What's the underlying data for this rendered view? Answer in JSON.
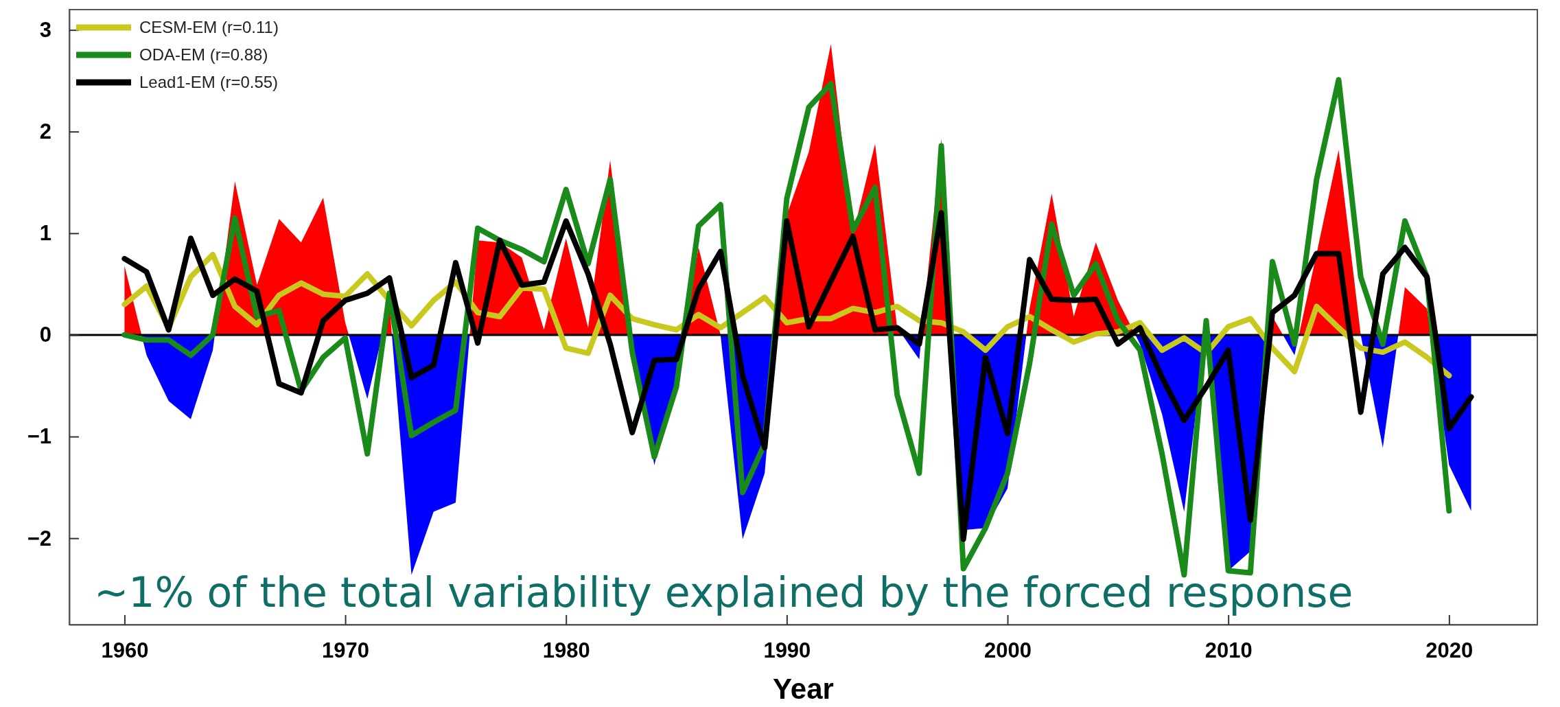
{
  "chart_data": {
    "type": "line",
    "xlabel": "Year",
    "x": [
      1960,
      1961,
      1962,
      1963,
      1964,
      1965,
      1966,
      1967,
      1968,
      1969,
      1970,
      1971,
      1972,
      1973,
      1974,
      1975,
      1976,
      1977,
      1978,
      1979,
      1980,
      1981,
      1982,
      1983,
      1984,
      1985,
      1986,
      1987,
      1988,
      1989,
      1990,
      1991,
      1992,
      1993,
      1994,
      1995,
      1996,
      1997,
      1998,
      1999,
      2000,
      2001,
      2002,
      2003,
      2004,
      2005,
      2006,
      2007,
      2008,
      2009,
      2010,
      2011,
      2012,
      2013,
      2014,
      2015,
      2016,
      2017,
      2018,
      2019,
      2020,
      2021
    ],
    "series": [
      {
        "type": "area",
        "colors": [
          "#ff0000",
          "#0000ff",
          "#0000ff",
          "#0000ff",
          "#0000ff",
          "#ff0000",
          "#ff0000",
          "#ff0000",
          "#ff0000",
          "#ff0000",
          "#ff0000",
          "#0000ff",
          "#ff0000",
          "#0000ff",
          "#0000ff",
          "#0000ff",
          "#ff0000",
          "#ff0000",
          "#ff0000",
          "#ff0000",
          "#ff0000",
          "#ff0000",
          "#ff0000",
          "#0000ff",
          "#0000ff",
          "#0000ff",
          "#ff0000",
          "#ff0000",
          "#0000ff",
          "#0000ff",
          "#ff0000",
          "#ff0000",
          "#ff0000",
          "#ff0000",
          "#ff0000",
          "#ff0000",
          "#0000ff",
          "#ff0000",
          "#0000ff",
          "#0000ff",
          "#0000ff",
          "#ff0000",
          "#ff0000",
          "#ff0000",
          "#ff0000",
          "#ff0000",
          "#0000ff",
          "#0000ff",
          "#0000ff",
          "#ff0000",
          "#0000ff",
          "#0000ff",
          "#ff0000",
          "#0000ff",
          "#ff0000",
          "#ff0000",
          "#ff0000",
          "#0000ff",
          "#ff0000",
          "#ff0000",
          "#0000ff",
          "#0000ff"
        ],
        "values": [
          0.68,
          -0.2,
          -0.65,
          -0.83,
          -0.15,
          1.51,
          0.49,
          1.14,
          0.91,
          1.35,
          0.12,
          -0.63,
          0.3,
          -2.36,
          -1.74,
          -1.65,
          0.93,
          0.91,
          0.76,
          0.05,
          0.95,
          0.07,
          1.72,
          -0.05,
          -1.28,
          -0.43,
          0.86,
          0.0,
          -2.01,
          -1.36,
          1.18,
          1.8,
          2.86,
          0.99,
          1.88,
          0.07,
          -0.24,
          1.93,
          -1.92,
          -1.9,
          -1.51,
          0.26,
          1.39,
          0.18,
          0.91,
          0.34,
          -0.09,
          -0.78,
          -1.74,
          0.1,
          -2.32,
          -2.13,
          0.18,
          -0.2,
          0.8,
          1.82,
          0.0,
          -1.11,
          0.47,
          0.26,
          -1.28,
          -1.73
        ]
      },
      {
        "name": "CESM-EM (r=0.11)",
        "color": "#c8c81e",
        "values": [
          0.3,
          0.48,
          0.07,
          0.57,
          0.79,
          0.28,
          0.1,
          0.39,
          0.51,
          0.4,
          0.38,
          0.6,
          0.34,
          0.09,
          0.34,
          0.52,
          0.22,
          0.18,
          0.46,
          0.45,
          -0.13,
          -0.18,
          0.39,
          0.16,
          0.1,
          0.05,
          0.2,
          0.07,
          0.22,
          0.37,
          0.12,
          0.16,
          0.16,
          0.26,
          0.22,
          0.28,
          0.14,
          0.12,
          0.03,
          -0.15,
          0.08,
          0.18,
          0.05,
          -0.07,
          0.01,
          0.03,
          0.12,
          -0.15,
          -0.03,
          -0.18,
          0.08,
          0.16,
          -0.13,
          -0.36,
          0.28,
          0.07,
          -0.13,
          -0.17,
          -0.07,
          -0.22,
          -0.4,
          null
        ]
      },
      {
        "name": "ODA-EM (r=0.88)",
        "color": "#1a8a1a",
        "values": [
          0.0,
          -0.05,
          -0.05,
          -0.2,
          0.0,
          1.15,
          0.18,
          0.24,
          -0.55,
          -0.22,
          -0.03,
          -1.17,
          0.41,
          -0.99,
          -0.86,
          -0.74,
          1.05,
          0.93,
          0.84,
          0.72,
          1.43,
          0.7,
          1.53,
          -0.17,
          -1.2,
          -0.51,
          1.07,
          1.28,
          -1.55,
          -1.07,
          1.34,
          2.24,
          2.47,
          1.03,
          1.45,
          -0.59,
          -1.36,
          1.86,
          -2.3,
          -1.9,
          -1.36,
          -0.28,
          1.09,
          0.39,
          0.7,
          0.14,
          -0.15,
          -1.17,
          -2.36,
          0.14,
          -2.32,
          -2.34,
          0.72,
          -0.09,
          1.53,
          2.51,
          0.57,
          -0.09,
          1.12,
          0.57,
          -1.73,
          null
        ]
      },
      {
        "name": "Lead1-EM (r=0.55)",
        "color": "#000000",
        "values": [
          0.75,
          0.62,
          0.05,
          0.95,
          0.39,
          0.55,
          0.43,
          -0.48,
          -0.57,
          0.14,
          0.34,
          0.41,
          0.56,
          -0.42,
          -0.3,
          0.71,
          -0.08,
          0.93,
          0.49,
          0.52,
          1.12,
          0.6,
          -0.09,
          -0.96,
          -0.25,
          -0.24,
          0.45,
          0.82,
          -0.4,
          -1.11,
          1.12,
          0.08,
          0.53,
          0.97,
          0.05,
          0.07,
          -0.09,
          1.2,
          -2.01,
          -0.22,
          -0.97,
          0.74,
          0.35,
          0.34,
          0.35,
          -0.09,
          0.07,
          -0.42,
          -0.84,
          -0.51,
          -0.15,
          -1.82,
          0.22,
          0.39,
          0.8,
          0.8,
          -0.76,
          0.6,
          0.86,
          0.57,
          -0.92,
          -0.61
        ]
      }
    ],
    "xlim": [
      1957.5,
      2024
    ],
    "xticks": [
      1960,
      1970,
      1980,
      1990,
      2000,
      2010,
      2020
    ],
    "ylim": [
      -2.85,
      3.2
    ],
    "yticks": [
      -2,
      -1,
      0,
      1,
      2,
      3
    ],
    "ref_lines": [
      {
        "axis": "y",
        "value": 0,
        "color": "#000000"
      }
    ],
    "annotations": [
      "~1% of the total variability explained by the forced response"
    ],
    "legend": "top left",
    "line_style": "solid",
    "marker": "none"
  }
}
